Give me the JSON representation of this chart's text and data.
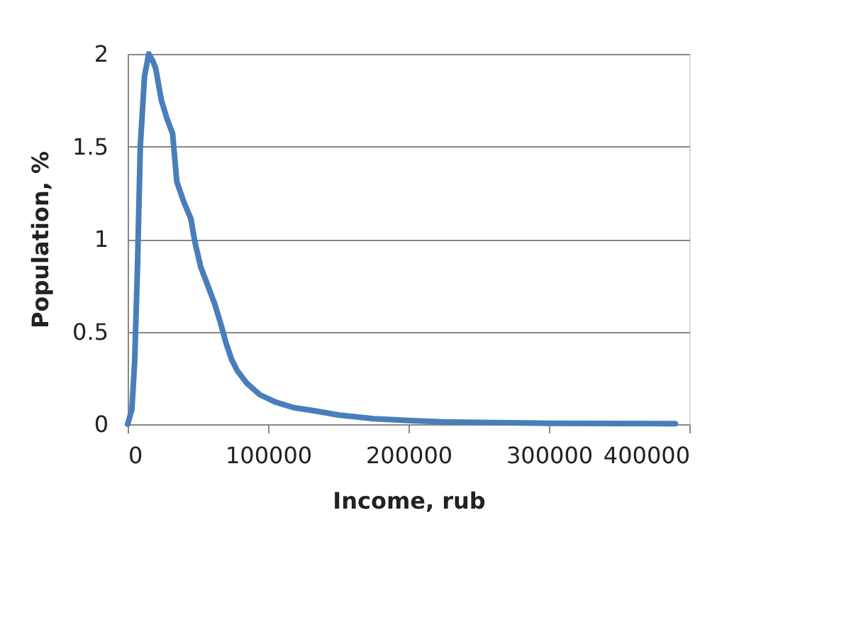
{
  "chart_data": {
    "type": "line",
    "xlabel": "Income, rub",
    "ylabel": "Population, %",
    "x": [
      0,
      3000,
      5000,
      7000,
      9000,
      12000,
      15000,
      18000,
      20000,
      24000,
      28000,
      32000,
      35000,
      40000,
      45000,
      48000,
      52000,
      57000,
      62000,
      66000,
      70000,
      74000,
      78000,
      85000,
      94000,
      105000,
      118000,
      135000,
      150000,
      175000,
      200000,
      225000,
      250000,
      300000,
      350000,
      390000
    ],
    "series": [
      {
        "color": "#4a7ebb",
        "values": [
          0,
          0.08,
          0.34,
          0.85,
          1.5,
          1.88,
          2.0,
          1.96,
          1.92,
          1.75,
          1.65,
          1.57,
          1.31,
          1.2,
          1.11,
          0.98,
          0.85,
          0.75,
          0.65,
          0.55,
          0.44,
          0.35,
          0.29,
          0.22,
          0.16,
          0.12,
          0.09,
          0.07,
          0.05,
          0.03,
          0.02,
          0.012,
          0.01,
          0.005,
          0.004,
          0.003
        ]
      }
    ],
    "xlim": [
      0,
      400000
    ],
    "xticks": [
      0,
      100000,
      200000,
      300000,
      400000
    ],
    "ylim": [
      0,
      2
    ],
    "yticks": [
      0,
      0.5,
      1,
      1.5,
      2
    ],
    "grid": "y",
    "line_style": "solid",
    "marker": "none"
  }
}
